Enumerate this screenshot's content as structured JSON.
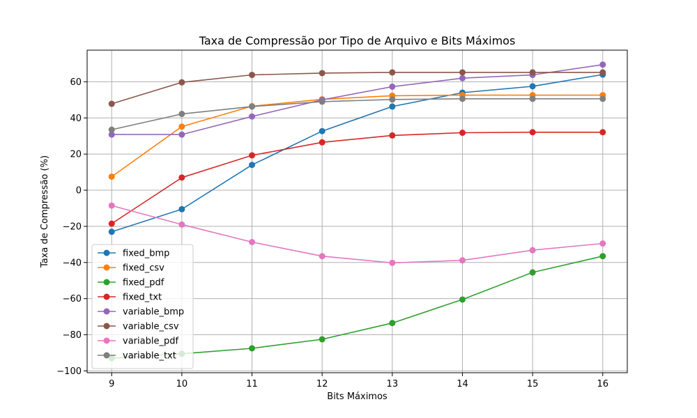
{
  "chart_data": {
    "type": "line",
    "title": "Taxa de Compressão por Tipo de Arquivo e Bits Máximos",
    "xlabel": "Bits Máximos",
    "ylabel": "Taxa de Compressão (%)",
    "x": [
      9,
      10,
      11,
      12,
      13,
      14,
      15,
      16
    ],
    "x_ticks": [
      "9",
      "10",
      "11",
      "12",
      "13",
      "14",
      "15",
      "16"
    ],
    "y_ticks": [
      "−100",
      "−80",
      "−60",
      "−40",
      "−20",
      "0",
      "20",
      "40",
      "60"
    ],
    "y_tick_values": [
      -100,
      -80,
      -60,
      -40,
      -20,
      0,
      20,
      40,
      60
    ],
    "xlim": [
      8.65,
      16.35
    ],
    "ylim": [
      -101,
      77.5
    ],
    "grid": true,
    "legend_position": "lower-left",
    "series": [
      {
        "name": "fixed_bmp",
        "color": "#1f77b4",
        "values": [
          -23,
          -10.5,
          14,
          32.7,
          46.3,
          54,
          57.5,
          64
        ]
      },
      {
        "name": "fixed_csv",
        "color": "#ff7f0e",
        "values": [
          7.5,
          35.2,
          46.5,
          50.3,
          52.3,
          52.6,
          52.6,
          52.6
        ]
      },
      {
        "name": "fixed_pdf",
        "color": "#2ca02c",
        "values": [
          -93,
          -90.5,
          -87.5,
          -82.5,
          -73.5,
          -60.5,
          -45.5,
          -36.5
        ]
      },
      {
        "name": "fixed_txt",
        "color": "#d62728",
        "values": [
          -18.5,
          7,
          19.3,
          26.5,
          30.3,
          31.8,
          32.1,
          32.1
        ]
      },
      {
        "name": "variable_bmp",
        "color": "#9467bd",
        "values": [
          30.8,
          30.8,
          40.8,
          50,
          57.3,
          62,
          63.8,
          69.5
        ]
      },
      {
        "name": "variable_csv",
        "color": "#8c564b",
        "values": [
          47.8,
          59.7,
          63.8,
          64.8,
          65.2,
          65.2,
          65.2,
          65.2
        ]
      },
      {
        "name": "variable_pdf",
        "color": "#e377c2",
        "values": [
          -8.5,
          -19,
          -28.7,
          -36.5,
          -40.2,
          -38.8,
          -33.2,
          -29.5
        ]
      },
      {
        "name": "variable_txt",
        "color": "#7f7f7f",
        "values": [
          33.5,
          42.2,
          46.3,
          49,
          50.2,
          50.6,
          50.6,
          50.6
        ]
      }
    ]
  }
}
